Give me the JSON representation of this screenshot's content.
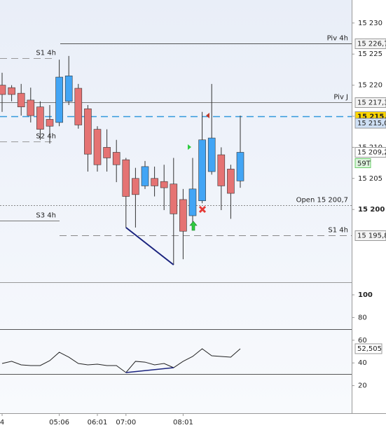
{
  "chart_data": [
    {
      "type": "candlestick",
      "categories": [
        "4",
        null,
        null,
        null,
        null,
        null,
        "05:06",
        null,
        null,
        null,
        "06:01",
        null,
        null,
        "07:00",
        null,
        null,
        null,
        null,
        null,
        "08:01",
        null,
        null,
        null,
        null,
        null,
        null
      ],
      "open": [
        15220.0,
        15219.6,
        15218.7,
        15217.6,
        15216.5,
        15214.5,
        15214.0,
        15217.4,
        15219.5,
        15216.2,
        15212.9,
        15210.0,
        15209.2,
        15208.0,
        15205.0,
        15203.8,
        15205.0,
        15204.5,
        15204.1,
        15201.6,
        15199.0,
        15201.4,
        15206.1,
        15208.8,
        15206.5,
        15204.6
      ],
      "high": [
        15222.0,
        15220.0,
        15220.2,
        15219.6,
        15217.4,
        15216.8,
        15224.1,
        15224.7,
        15220.2,
        15216.8,
        15213.4,
        15212.9,
        15211.2,
        15208.3,
        15206.7,
        15207.8,
        15206.9,
        15207.2,
        15208.3,
        15203.3,
        15208.3,
        15215.7,
        15220.2,
        15210.0,
        15207.2,
        15215.1
      ],
      "low": [
        15215.7,
        15217.4,
        15215.1,
        15214.0,
        15211.2,
        15210.6,
        15213.4,
        15216.8,
        15213.0,
        15206.1,
        15206.1,
        15206.1,
        15204.4,
        15197.1,
        15197.1,
        15203.3,
        15202.1,
        15199.9,
        15191.1,
        15192.0,
        15197.9,
        15201.0,
        15205.6,
        15199.9,
        15198.5,
        15203.5
      ],
      "close": [
        15218.5,
        15218.5,
        15216.5,
        15215.1,
        15212.9,
        15213.4,
        15221.3,
        15221.5,
        15213.6,
        15208.9,
        15207.2,
        15208.3,
        15207.2,
        15202.1,
        15202.4,
        15206.9,
        15203.8,
        15203.5,
        15199.3,
        15196.5,
        15203.3,
        15211.2,
        15211.5,
        15203.8,
        15202.6,
        15209.2
      ],
      "up_color": "#42a5f5",
      "down_color": "#e57373",
      "ylim": [
        15188.3,
        15233.7
      ],
      "yticks": [
        {
          "value": 15230,
          "label": "15 230"
        },
        {
          "value": 15225,
          "label": "15 225"
        },
        {
          "value": 15220,
          "label": "15 220"
        },
        {
          "value": 15215,
          "label": "15 215"
        },
        {
          "value": 15210,
          "label": "15 210"
        },
        {
          "value": 15205,
          "label": "15 205"
        },
        {
          "value": 15200,
          "label": "15 200"
        }
      ],
      "levels": [
        {
          "name": "Piv 4h",
          "value": 15226.7,
          "value_label": "15 226,7",
          "style": "solid",
          "color": "#555555"
        },
        {
          "name": "Piv J",
          "value": 15217.3,
          "value_label": "15 217,3",
          "style": "solid",
          "color": "#777777"
        },
        {
          "name": "Open 15 200,7",
          "value": 15200.7,
          "style": "dotted",
          "color": "#888888"
        },
        {
          "name": "S1 4h",
          "value": 15195.8,
          "value_label": "15 195,8",
          "style": "dashed",
          "color": "#888888"
        },
        {
          "name": "S1 4h",
          "value": 15224.4,
          "style": "dashed",
          "color": "#999999"
        },
        {
          "name": "S2 4h",
          "value": 15210.9,
          "style": "dashed",
          "color": "#999999"
        },
        {
          "name": "S3 4h",
          "value": 15198.2,
          "style": "solid",
          "color": "#777777"
        },
        {
          "value": 15215.0,
          "value_label": "15 215,0",
          "style": "dashed",
          "color": "#3399dd"
        }
      ],
      "price_labels": [
        {
          "value": 15215.0,
          "label": "15 215,0"
        },
        {
          "value": 15209.2,
          "label": "15 209,2"
        }
      ],
      "tick_counter": "59T",
      "divergence": {
        "from": 13,
        "to": 18,
        "color": "#1a237e"
      }
    },
    {
      "type": "line",
      "values": [
        39.5,
        41.4,
        38.3,
        37.7,
        37.7,
        42.0,
        49.4,
        45.1,
        39.5,
        38.3,
        38.9,
        37.7,
        37.7,
        31.5,
        41.4,
        40.7,
        38.3,
        39.5,
        35.8,
        41.4,
        45.7,
        52.5,
        46.3,
        45.7,
        45.1,
        52.505
      ],
      "value_label": "52,505",
      "color": "#222222",
      "ylim": [
        -4.3,
        111.1
      ],
      "yticks": [
        20,
        40,
        60,
        80,
        100
      ],
      "levels": [
        70,
        30
      ],
      "divergence": {
        "from": 13,
        "to": 18,
        "color": "#1a237e"
      }
    }
  ]
}
